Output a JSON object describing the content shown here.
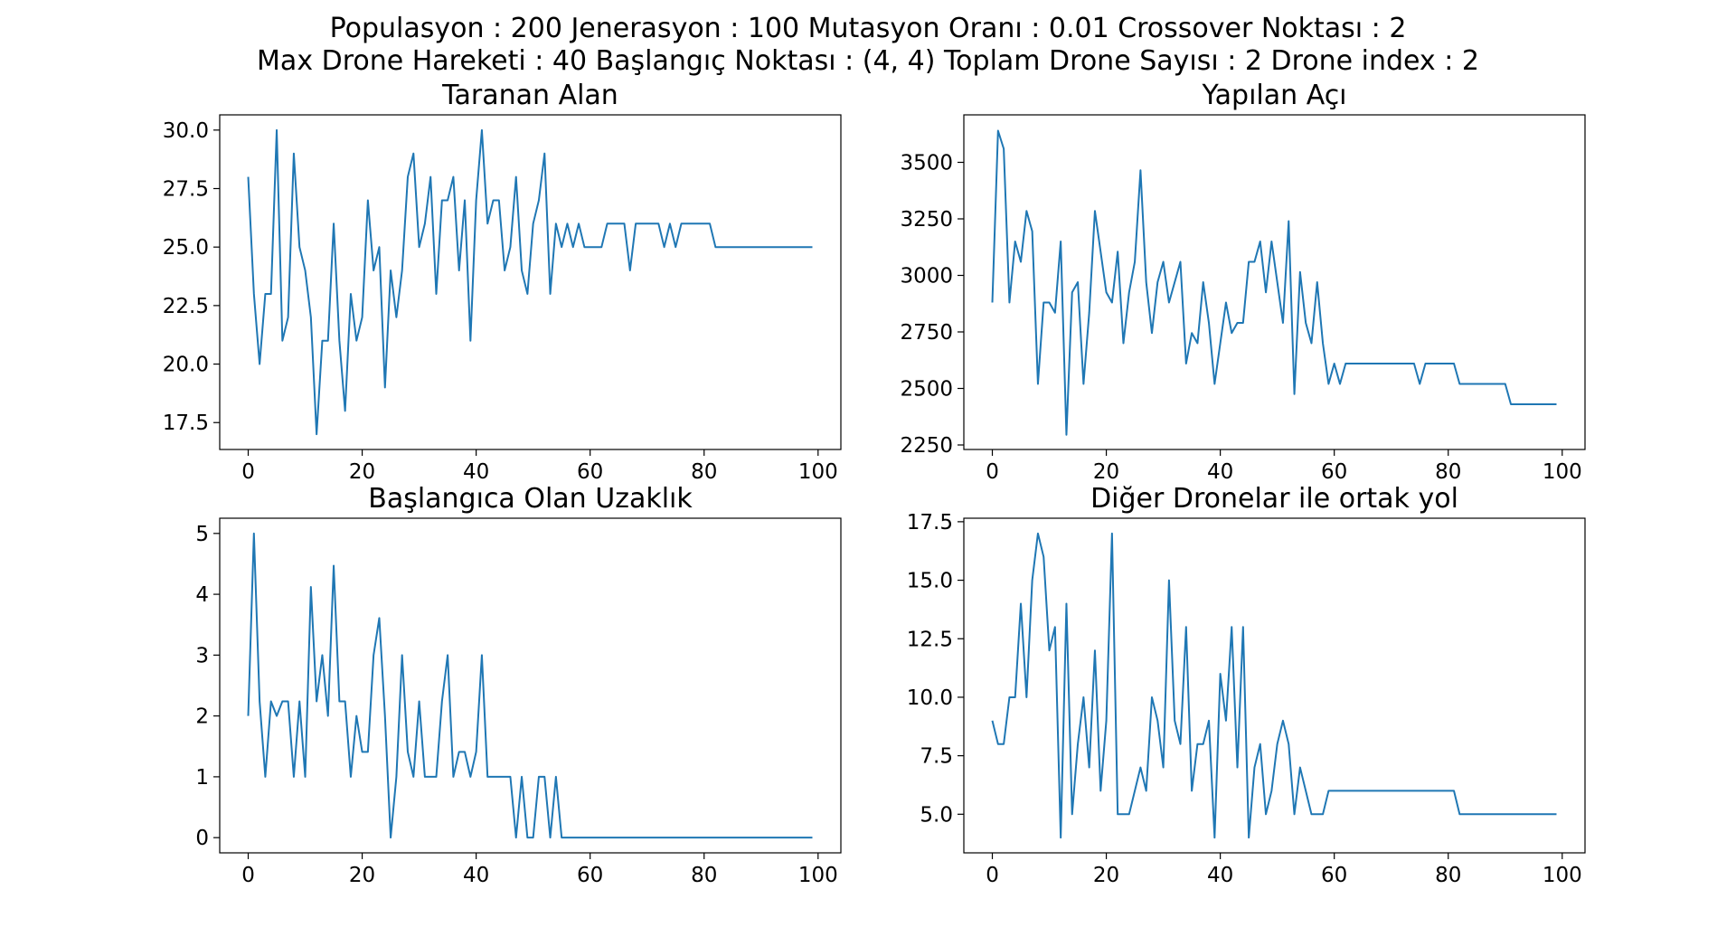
{
  "figure": {
    "suptitle_line1": "Populasyon : 200 Jenerasyon : 100 Mutasyon Oranı : 0.01 Crossover Noktası : 2",
    "suptitle_line2": "Max Drone Hareketi : 40 Başlangıç Noktası : (4, 4) Toplam Drone Sayısı : 2 Drone index : 2",
    "line_color": "#1f77b4"
  },
  "chart_data": [
    {
      "type": "line",
      "title": "Taranan Alan",
      "xlabel": "",
      "ylabel": "",
      "xlim": [
        -5,
        104
      ],
      "ylim": [
        16.35,
        30.65
      ],
      "xticks": [
        0,
        20,
        40,
        60,
        80,
        100
      ],
      "yticks": [
        17.5,
        20.0,
        22.5,
        25.0,
        27.5,
        30.0
      ],
      "grid": false,
      "series": [
        {
          "values": [
            28,
            23,
            20,
            23,
            23,
            30,
            21,
            22,
            29,
            25,
            24,
            22,
            17,
            21,
            21,
            26,
            21,
            18,
            23,
            21,
            22,
            27,
            24,
            25,
            19,
            24,
            22,
            24,
            28,
            29,
            25,
            26,
            28,
            23,
            27,
            27,
            28,
            24,
            27,
            21,
            27,
            30,
            26,
            27,
            27,
            24,
            25,
            28,
            24,
            23,
            26,
            27,
            29,
            23,
            26,
            25,
            26,
            25,
            26,
            25,
            25,
            25,
            25,
            26,
            26,
            26,
            26,
            24,
            26,
            26,
            26,
            26,
            26,
            25,
            26,
            25,
            26,
            26,
            26,
            26,
            26,
            26,
            25,
            25,
            25,
            25,
            25,
            25,
            25,
            25,
            25,
            25,
            25,
            25,
            25,
            25,
            25,
            25,
            25,
            25
          ]
        }
      ]
    },
    {
      "type": "line",
      "title": "Yapılan Açı",
      "xlabel": "",
      "ylabel": "",
      "xlim": [
        -5,
        104
      ],
      "ylim": [
        2230,
        3710
      ],
      "xticks": [
        0,
        20,
        40,
        60,
        80,
        100
      ],
      "yticks": [
        2250,
        2500,
        2750,
        3000,
        3250,
        3500
      ],
      "grid": false,
      "series": [
        {
          "values": [
            2880,
            3640,
            3560,
            2880,
            3150,
            3060,
            3285,
            3195,
            2520,
            2880,
            2880,
            2835,
            3150,
            2295,
            2925,
            2970,
            2520,
            2835,
            3285,
            3105,
            2925,
            2880,
            3105,
            2700,
            2925,
            3060,
            3465,
            2970,
            2745,
            2970,
            3060,
            2880,
            2970,
            3060,
            2610,
            2745,
            2700,
            2970,
            2790,
            2520,
            2700,
            2880,
            2745,
            2790,
            2790,
            3060,
            3060,
            3150,
            2925,
            3150,
            2970,
            2790,
            3240,
            2475,
            3015,
            2790,
            2700,
            2970,
            2700,
            2520,
            2610,
            2520,
            2610,
            2610,
            2610,
            2610,
            2610,
            2610,
            2610,
            2610,
            2610,
            2610,
            2610,
            2610,
            2610,
            2520,
            2610,
            2610,
            2610,
            2610,
            2610,
            2610,
            2520,
            2520,
            2520,
            2520,
            2520,
            2520,
            2520,
            2520,
            2520,
            2430,
            2430,
            2430,
            2430,
            2430,
            2430,
            2430,
            2430,
            2430
          ]
        }
      ]
    },
    {
      "type": "line",
      "title": "Başlangıca Olan Uzaklık",
      "xlabel": "",
      "ylabel": "",
      "xlim": [
        -5,
        104
      ],
      "ylim": [
        -0.25,
        5.25
      ],
      "xticks": [
        0,
        20,
        40,
        60,
        80,
        100
      ],
      "yticks": [
        0,
        1,
        2,
        3,
        4,
        5
      ],
      "grid": false,
      "series": [
        {
          "values": [
            2,
            5,
            2.24,
            1,
            2.24,
            2,
            2.24,
            2.24,
            1,
            2.24,
            1,
            4.12,
            2.24,
            3,
            2,
            4.47,
            2.24,
            2.24,
            1,
            2,
            1.41,
            1.41,
            3,
            3.61,
            2,
            0,
            1,
            3,
            1.41,
            1,
            2.24,
            1,
            1,
            1,
            2.24,
            3,
            1,
            1.41,
            1.41,
            1,
            1.41,
            3,
            1,
            1,
            1,
            1,
            1,
            0,
            1,
            0,
            0,
            1,
            1,
            0,
            1,
            0,
            0,
            0,
            0,
            0,
            0,
            0,
            0,
            0,
            0,
            0,
            0,
            0,
            0,
            0,
            0,
            0,
            0,
            0,
            0,
            0,
            0,
            0,
            0,
            0,
            0,
            0,
            0,
            0,
            0,
            0,
            0,
            0,
            0,
            0,
            0,
            0,
            0,
            0,
            0,
            0,
            0,
            0,
            0,
            0
          ]
        }
      ]
    },
    {
      "type": "line",
      "title": "Diğer Dronelar ile ortak yol",
      "xlabel": "",
      "ylabel": "",
      "xlim": [
        -5,
        104
      ],
      "ylim": [
        3.35,
        17.65
      ],
      "xticks": [
        0,
        20,
        40,
        60,
        80,
        100
      ],
      "yticks": [
        5.0,
        7.5,
        10.0,
        12.5,
        15.0,
        17.5
      ],
      "grid": false,
      "series": [
        {
          "values": [
            9,
            8,
            8,
            10,
            10,
            14,
            10,
            15,
            17,
            16,
            12,
            13,
            4,
            14,
            5,
            8,
            10,
            7,
            12,
            6,
            9,
            17,
            5,
            5,
            5,
            6,
            7,
            6,
            10,
            9,
            7,
            15,
            9,
            8,
            13,
            6,
            8,
            8,
            9,
            4,
            11,
            9,
            13,
            7,
            13,
            4,
            7,
            8,
            5,
            6,
            8,
            9,
            8,
            5,
            7,
            6,
            5,
            5,
            5,
            6,
            6,
            6,
            6,
            6,
            6,
            6,
            6,
            6,
            6,
            6,
            6,
            6,
            6,
            6,
            6,
            6,
            6,
            6,
            6,
            6,
            6,
            6,
            5,
            5,
            5,
            5,
            5,
            5,
            5,
            5,
            5,
            5,
            5,
            5,
            5,
            5,
            5,
            5,
            5,
            5
          ]
        }
      ]
    }
  ]
}
